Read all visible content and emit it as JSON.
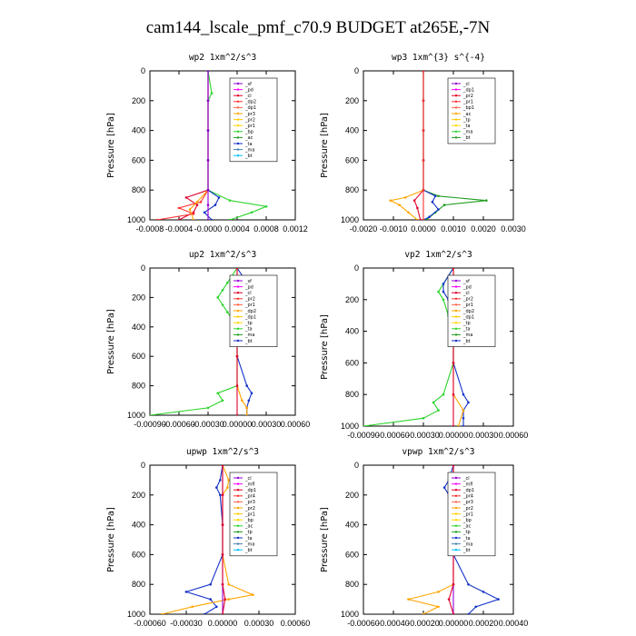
{
  "title": "cam144_lscale_pmf_c70.9  BUDGET at265E,-7N",
  "chart_data": [
    {
      "type": "line",
      "title": "wp2   1xm^2/s^3",
      "ylabel": "Pressure [hPa]",
      "ylim": [
        0,
        1000
      ],
      "xlim": [
        -0.0008,
        0.0012
      ],
      "xticks": [
        "-0.0008",
        "-0.0004",
        "-0.0000",
        "0.0004",
        "0.0008",
        "0.0012"
      ],
      "yticks": [
        "0",
        "200",
        "400",
        "600",
        "800",
        "1000"
      ],
      "legend": [
        "_sf",
        "_pd",
        "_cl",
        "_dp2",
        "_dp1",
        "_pr3",
        "_pr2",
        "_pr1",
        "_bp",
        "_ac",
        "_ta",
        "_ma",
        "_bt"
      ],
      "series": [
        {
          "name": "_cl",
          "color": "#e0002a",
          "y": [
            0,
            200,
            400,
            600,
            800,
            850,
            900,
            950,
            1000
          ],
          "x": [
            0,
            0,
            0,
            0,
            0,
            -0.0003,
            -0.00015,
            -0.0002,
            -0.0004
          ]
        },
        {
          "name": "_dp1",
          "color": "#ff3030",
          "y": [
            0,
            200,
            400,
            600,
            800,
            880,
            920,
            960,
            1000
          ],
          "x": [
            0,
            0,
            0,
            0,
            0,
            -0.0001,
            -0.0004,
            -0.0002,
            -0.0007
          ]
        },
        {
          "name": "_pr2",
          "color": "#ffa500",
          "y": [
            0,
            200,
            400,
            600,
            800,
            880,
            930,
            1000
          ],
          "x": [
            0,
            0,
            0,
            0,
            0,
            -0.00015,
            -0.00025,
            -0.0002
          ]
        },
        {
          "name": "_bp",
          "color": "#2bd42b",
          "y": [
            0,
            150,
            200,
            400,
            600,
            800,
            870,
            910,
            950,
            1000
          ],
          "x": [
            0,
            5e-05,
            0,
            0,
            0,
            0,
            0.0003,
            0.0008,
            0.0006,
            0.0003
          ]
        },
        {
          "name": "_ac",
          "color": "#1432c8",
          "y": [
            0,
            200,
            400,
            600,
            800,
            850,
            900,
            950,
            1000
          ],
          "x": [
            0,
            0,
            0,
            0,
            0,
            0.00015,
            0.0001,
            -5e-05,
            5e-05
          ]
        },
        {
          "name": "_sf",
          "color": "#9400d3",
          "y": [
            0,
            200,
            400,
            600,
            800,
            900,
            1000
          ],
          "x": [
            0,
            0,
            0,
            0,
            0,
            0,
            0
          ]
        }
      ]
    },
    {
      "type": "line",
      "title": "wp3   1xm^{3} s^{-4}",
      "ylabel": "Pressure [hPa]",
      "ylim": [
        0,
        1000
      ],
      "xlim": [
        -0.002,
        0.003
      ],
      "xticks": [
        "-0.0020",
        "-0.0010",
        "0.0000",
        "0.0010",
        "0.0020",
        "0.0030"
      ],
      "yticks": [
        "0",
        "200",
        "400",
        "600",
        "800",
        "1000"
      ],
      "legend": [
        "_cl",
        "_dp1",
        "_pr2",
        "_pr1",
        "_bp1",
        "_ac",
        "_tp",
        "_ta",
        "_ma",
        "_bt"
      ],
      "series": [
        {
          "name": "_cl",
          "color": "#e0002a",
          "y": [
            0,
            200,
            400,
            600,
            800,
            870,
            920,
            1000
          ],
          "x": [
            0,
            0,
            0,
            0,
            0,
            -0.0003,
            -0.0002,
            -0.0001
          ]
        },
        {
          "name": "_pr2",
          "color": "#ffa500",
          "y": [
            0,
            200,
            400,
            600,
            800,
            850,
            870,
            900,
            950,
            1000
          ],
          "x": [
            0,
            0,
            0,
            0,
            0,
            -0.0006,
            -0.0011,
            -0.0008,
            -0.0005,
            -0.0002
          ]
        },
        {
          "name": "_ac",
          "color": "#1e9c1e",
          "y": [
            0,
            200,
            400,
            600,
            800,
            840,
            870,
            900,
            950,
            1000
          ],
          "x": [
            0,
            0,
            0,
            0,
            0,
            0.0005,
            0.0021,
            0.0007,
            0.0004,
            0.0001
          ]
        },
        {
          "name": "_tp",
          "color": "#1432c8",
          "y": [
            0,
            200,
            400,
            600,
            800,
            840,
            880,
            930,
            980,
            1000
          ],
          "x": [
            0,
            0,
            0,
            0,
            0,
            0.0004,
            0.0003,
            0.0005,
            0.0002,
            0
          ]
        },
        {
          "name": "_dp1",
          "color": "#ff3030",
          "y": [
            0,
            200,
            400,
            600,
            800,
            1000
          ],
          "x": [
            0,
            0,
            0,
            0,
            0,
            0
          ]
        }
      ]
    },
    {
      "type": "line",
      "title": "up2   1xm^2/s^3",
      "ylabel": "Pressure [hPa]",
      "ylim": [
        0,
        1000
      ],
      "xlim": [
        -0.0009,
        0.0006
      ],
      "xticks": [
        "-0.00090",
        "-0.00060",
        "-0.00030",
        "0.00000",
        "0.00030",
        "0.00060"
      ],
      "yticks": [
        "0",
        "200",
        "400",
        "600",
        "800",
        "1000"
      ],
      "legend": [
        "_sf",
        "_pd",
        "_cl",
        "_pr2",
        "_pr1",
        "_dp2",
        "_dp1",
        "_tp",
        "_ta",
        "_ma",
        "_bt"
      ],
      "series": [
        {
          "name": "_dp1",
          "color": "#2bd42b",
          "y": [
            0,
            100,
            150,
            200,
            250,
            300,
            400,
            600,
            800,
            850,
            900,
            950,
            1000
          ],
          "x": [
            0,
            -0.0001,
            -0.00015,
            -0.0002,
            -0.00015,
            -0.0001,
            0,
            0,
            0,
            -0.0002,
            -0.00015,
            -0.0003,
            -0.0009
          ]
        },
        {
          "name": "_tp",
          "color": "#1432c8",
          "y": [
            0,
            100,
            200,
            300,
            400,
            600,
            800,
            850,
            900,
            950,
            1000
          ],
          "x": [
            0,
            0.0001,
            0.00012,
            8e-05,
            0,
            0,
            0.0001,
            0.00015,
            0.00012,
            0.0001,
            0.0001
          ]
        },
        {
          "name": "_pr2",
          "color": "#ffa500",
          "y": [
            0,
            200,
            400,
            600,
            800,
            900,
            950,
            1000
          ],
          "x": [
            0,
            0,
            0,
            0,
            0,
            5e-05,
            0.0001,
            0.0001
          ]
        },
        {
          "name": "_sf",
          "color": "#e0002a",
          "y": [
            0,
            200,
            400,
            600,
            800,
            1000
          ],
          "x": [
            0,
            0,
            0,
            0,
            0,
            0
          ]
        }
      ]
    },
    {
      "type": "line",
      "title": "vp2   1xm^2/s^3",
      "ylabel": "Pressure [hPa]",
      "ylim": [
        0,
        1000
      ],
      "xlim": [
        -0.0009,
        0.0006
      ],
      "xticks": [
        "-0.00090",
        "-0.00060",
        "-0.00030",
        "0.00000",
        "0.00030",
        "0.00060"
      ],
      "yticks": [
        "0",
        "200",
        "400",
        "600",
        "800",
        "1000"
      ],
      "legend": [
        "_sf",
        "_pd",
        "_cl",
        "_pr2",
        "_pr1",
        "_dp2",
        "_dp1",
        "_tp",
        "_ta",
        "_ma",
        "_bt"
      ],
      "series": [
        {
          "name": "_dp1",
          "color": "#2bd42b",
          "y": [
            0,
            100,
            150,
            200,
            300,
            400,
            600,
            800,
            850,
            900,
            950,
            1000
          ],
          "x": [
            0,
            -0.0001,
            -0.00015,
            -0.0001,
            -5e-05,
            0,
            0,
            -0.0001,
            -0.0002,
            -0.00015,
            -0.0003,
            -0.0009
          ]
        },
        {
          "name": "_tp",
          "color": "#1432c8",
          "y": [
            0,
            100,
            150,
            200,
            300,
            400,
            600,
            800,
            850,
            900,
            950,
            1000
          ],
          "x": [
            0,
            -0.0001,
            -0.0001,
            -5e-05,
            0,
            0,
            0,
            0.0001,
            0.00015,
            0.0001,
            0.0001,
            0.0001
          ]
        },
        {
          "name": "_pr2",
          "color": "#ffa500",
          "y": [
            0,
            200,
            400,
            600,
            800,
            900,
            1000
          ],
          "x": [
            0,
            0,
            0,
            0,
            0,
            0.0001,
            5e-05
          ]
        },
        {
          "name": "_sf",
          "color": "#e0002a",
          "y": [
            0,
            200,
            400,
            600,
            800,
            1000
          ],
          "x": [
            0,
            0,
            0,
            0,
            0,
            0
          ]
        }
      ]
    },
    {
      "type": "line",
      "title": "upwp   1xm^2/s^3",
      "ylabel": "Pressure [hPa]",
      "ylim": [
        0,
        1000
      ],
      "xlim": [
        -0.0006,
        0.0006
      ],
      "xticks": [
        "-0.00060",
        "-0.00030",
        "0.00000",
        "0.00030",
        "0.00060"
      ],
      "yticks": [
        "0",
        "200",
        "400",
        "600",
        "800",
        "1000"
      ],
      "legend": [
        "_cl",
        "_mfl",
        "_dp1",
        "_pr4",
        "_pr3",
        "_pr2",
        "_pr1",
        "_bp",
        "_ac",
        "_tp",
        "_ta",
        "_ma",
        "_bt"
      ],
      "series": [
        {
          "name": "_tp",
          "color": "#1432c8",
          "y": [
            0,
            100,
            150,
            200,
            400,
            600,
            800,
            850,
            900,
            950,
            1000
          ],
          "x": [
            0,
            -2e-05,
            -5e-05,
            -2e-05,
            0,
            0,
            -0.0001,
            -0.0003,
            -0.0001,
            -5e-05,
            -0.00015
          ]
        },
        {
          "name": "_pr1",
          "color": "#ffa500",
          "y": [
            0,
            100,
            150,
            200,
            400,
            600,
            800,
            870,
            900,
            950,
            1000
          ],
          "x": [
            0,
            5e-05,
            4e-05,
            0,
            0,
            0,
            5e-05,
            0.00025,
            5e-05,
            -0.00025,
            -0.0005
          ]
        },
        {
          "name": "_cl",
          "color": "#9400d3",
          "y": [
            0,
            200,
            400,
            600,
            800,
            1000
          ],
          "x": [
            0,
            0,
            0,
            0,
            0,
            0
          ]
        },
        {
          "name": "_dp1",
          "color": "#e0002a",
          "y": [
            0,
            200,
            400,
            600,
            800,
            900,
            1000
          ],
          "x": [
            0,
            0,
            0,
            0,
            0,
            2e-05,
            0
          ]
        }
      ]
    },
    {
      "type": "line",
      "title": "vpwp   1xm^2/s^3",
      "ylabel": "Pressure [hPa]",
      "ylim": [
        0,
        1000
      ],
      "xlim": [
        -0.0006,
        0.0004
      ],
      "xticks": [
        "-0.00060",
        "-0.00040",
        "-0.00020",
        "0.00000",
        "0.00020",
        "0.00040"
      ],
      "yticks": [
        "0",
        "200",
        "400",
        "600",
        "800",
        "1000"
      ],
      "legend": [
        "_cl",
        "_mfl",
        "_dp1",
        "_pr4",
        "_pr3",
        "_pr2",
        "_pr1",
        "_bp",
        "_ac",
        "_tp",
        "_ta",
        "_ma",
        "_bt"
      ],
      "series": [
        {
          "name": "_tp",
          "color": "#1432c8",
          "y": [
            0,
            100,
            150,
            200,
            400,
            600,
            800,
            850,
            900,
            950,
            1000
          ],
          "x": [
            0,
            -3e-05,
            -6e-05,
            -3e-05,
            0,
            0,
            0.0001,
            0.0002,
            0.0003,
            0.00015,
            0.0001
          ]
        },
        {
          "name": "_pr1",
          "color": "#ffa500",
          "y": [
            0,
            200,
            400,
            600,
            800,
            850,
            900,
            950,
            1000
          ],
          "x": [
            0,
            0,
            0,
            0,
            0,
            -0.0001,
            -0.0003,
            -0.0001,
            -0.0002
          ]
        },
        {
          "name": "_cl",
          "color": "#9400d3",
          "y": [
            0,
            200,
            400,
            600,
            800,
            1000
          ],
          "x": [
            0,
            0,
            0,
            0,
            0,
            0
          ]
        },
        {
          "name": "_dp1",
          "color": "#e0002a",
          "y": [
            0,
            200,
            400,
            600,
            800,
            900,
            1000
          ],
          "x": [
            0,
            0,
            0,
            0,
            0,
            -3e-05,
            0
          ]
        }
      ]
    }
  ]
}
